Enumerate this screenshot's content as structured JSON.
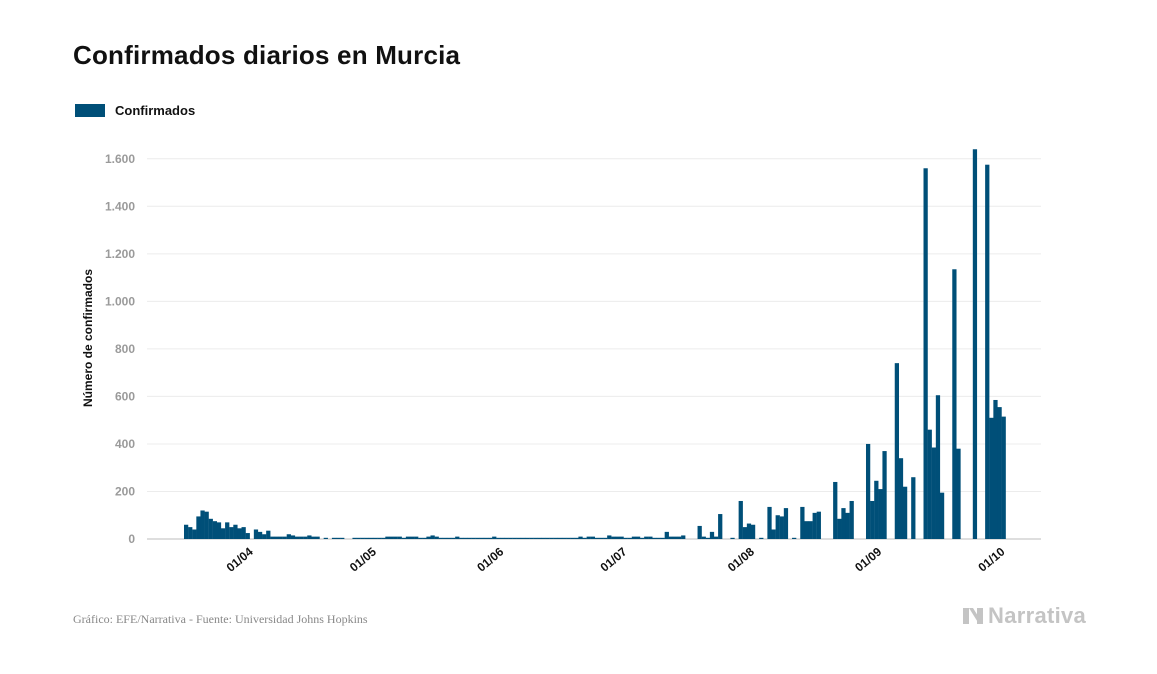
{
  "title": "Confirmados diarios en Murcia",
  "legend": {
    "label": "Confirmados",
    "color": "#004f78"
  },
  "footer": {
    "source": "Gráfico: EFE/Narrativa - Fuente: Universidad Johns Hopkins",
    "brand": "Narrativa"
  },
  "chart_data": {
    "type": "bar",
    "ylabel": "Número de confirmados",
    "ylim": [
      0,
      1700
    ],
    "yticks": [
      0,
      200,
      400,
      600,
      800,
      1000,
      1200,
      1400,
      1600
    ],
    "ytick_labels": [
      "0",
      "200",
      "400",
      "600",
      "800",
      "1.000",
      "1.200",
      "1.400",
      "1.600"
    ],
    "xticks": [
      "01/04",
      "01/05",
      "01/06",
      "01/07",
      "01/08",
      "01/09",
      "01/10"
    ],
    "x_start": "2020-03-16",
    "x_end": "2020-10-05",
    "grid": true,
    "legend_position": "top-left",
    "series": [
      {
        "name": "Confirmados",
        "color": "#004f78",
        "values": [
          60,
          50,
          40,
          95,
          120,
          115,
          85,
          75,
          70,
          45,
          70,
          50,
          60,
          45,
          50,
          25,
          0,
          40,
          30,
          20,
          35,
          10,
          10,
          10,
          10,
          20,
          15,
          10,
          10,
          10,
          15,
          10,
          10,
          0,
          5,
          0,
          5,
          5,
          5,
          0,
          0,
          5,
          5,
          5,
          5,
          5,
          5,
          5,
          5,
          10,
          10,
          10,
          10,
          5,
          10,
          10,
          10,
          5,
          5,
          10,
          15,
          10,
          5,
          5,
          5,
          5,
          10,
          5,
          5,
          5,
          5,
          5,
          5,
          5,
          5,
          10,
          5,
          5,
          5,
          5,
          5,
          5,
          5,
          5,
          5,
          5,
          5,
          5,
          5,
          5,
          5,
          5,
          5,
          5,
          5,
          5,
          10,
          5,
          10,
          10,
          5,
          5,
          5,
          15,
          10,
          10,
          10,
          5,
          5,
          10,
          10,
          5,
          10,
          10,
          5,
          5,
          5,
          30,
          10,
          10,
          10,
          15,
          0,
          0,
          0,
          55,
          10,
          5,
          30,
          10,
          105,
          0,
          0,
          5,
          0,
          160,
          50,
          65,
          60,
          0,
          5,
          0,
          135,
          40,
          100,
          95,
          130,
          0,
          5,
          0,
          135,
          75,
          75,
          110,
          115,
          0,
          0,
          0,
          240,
          85,
          130,
          110,
          160,
          0,
          0,
          0,
          400,
          160,
          245,
          210,
          370,
          0,
          0,
          740,
          340,
          220,
          0,
          260,
          0,
          0,
          1560,
          460,
          385,
          605,
          195,
          0,
          0,
          1135,
          380,
          0,
          0,
          0,
          1640,
          0,
          0,
          1575,
          510,
          585,
          555,
          515
        ]
      }
    ]
  }
}
